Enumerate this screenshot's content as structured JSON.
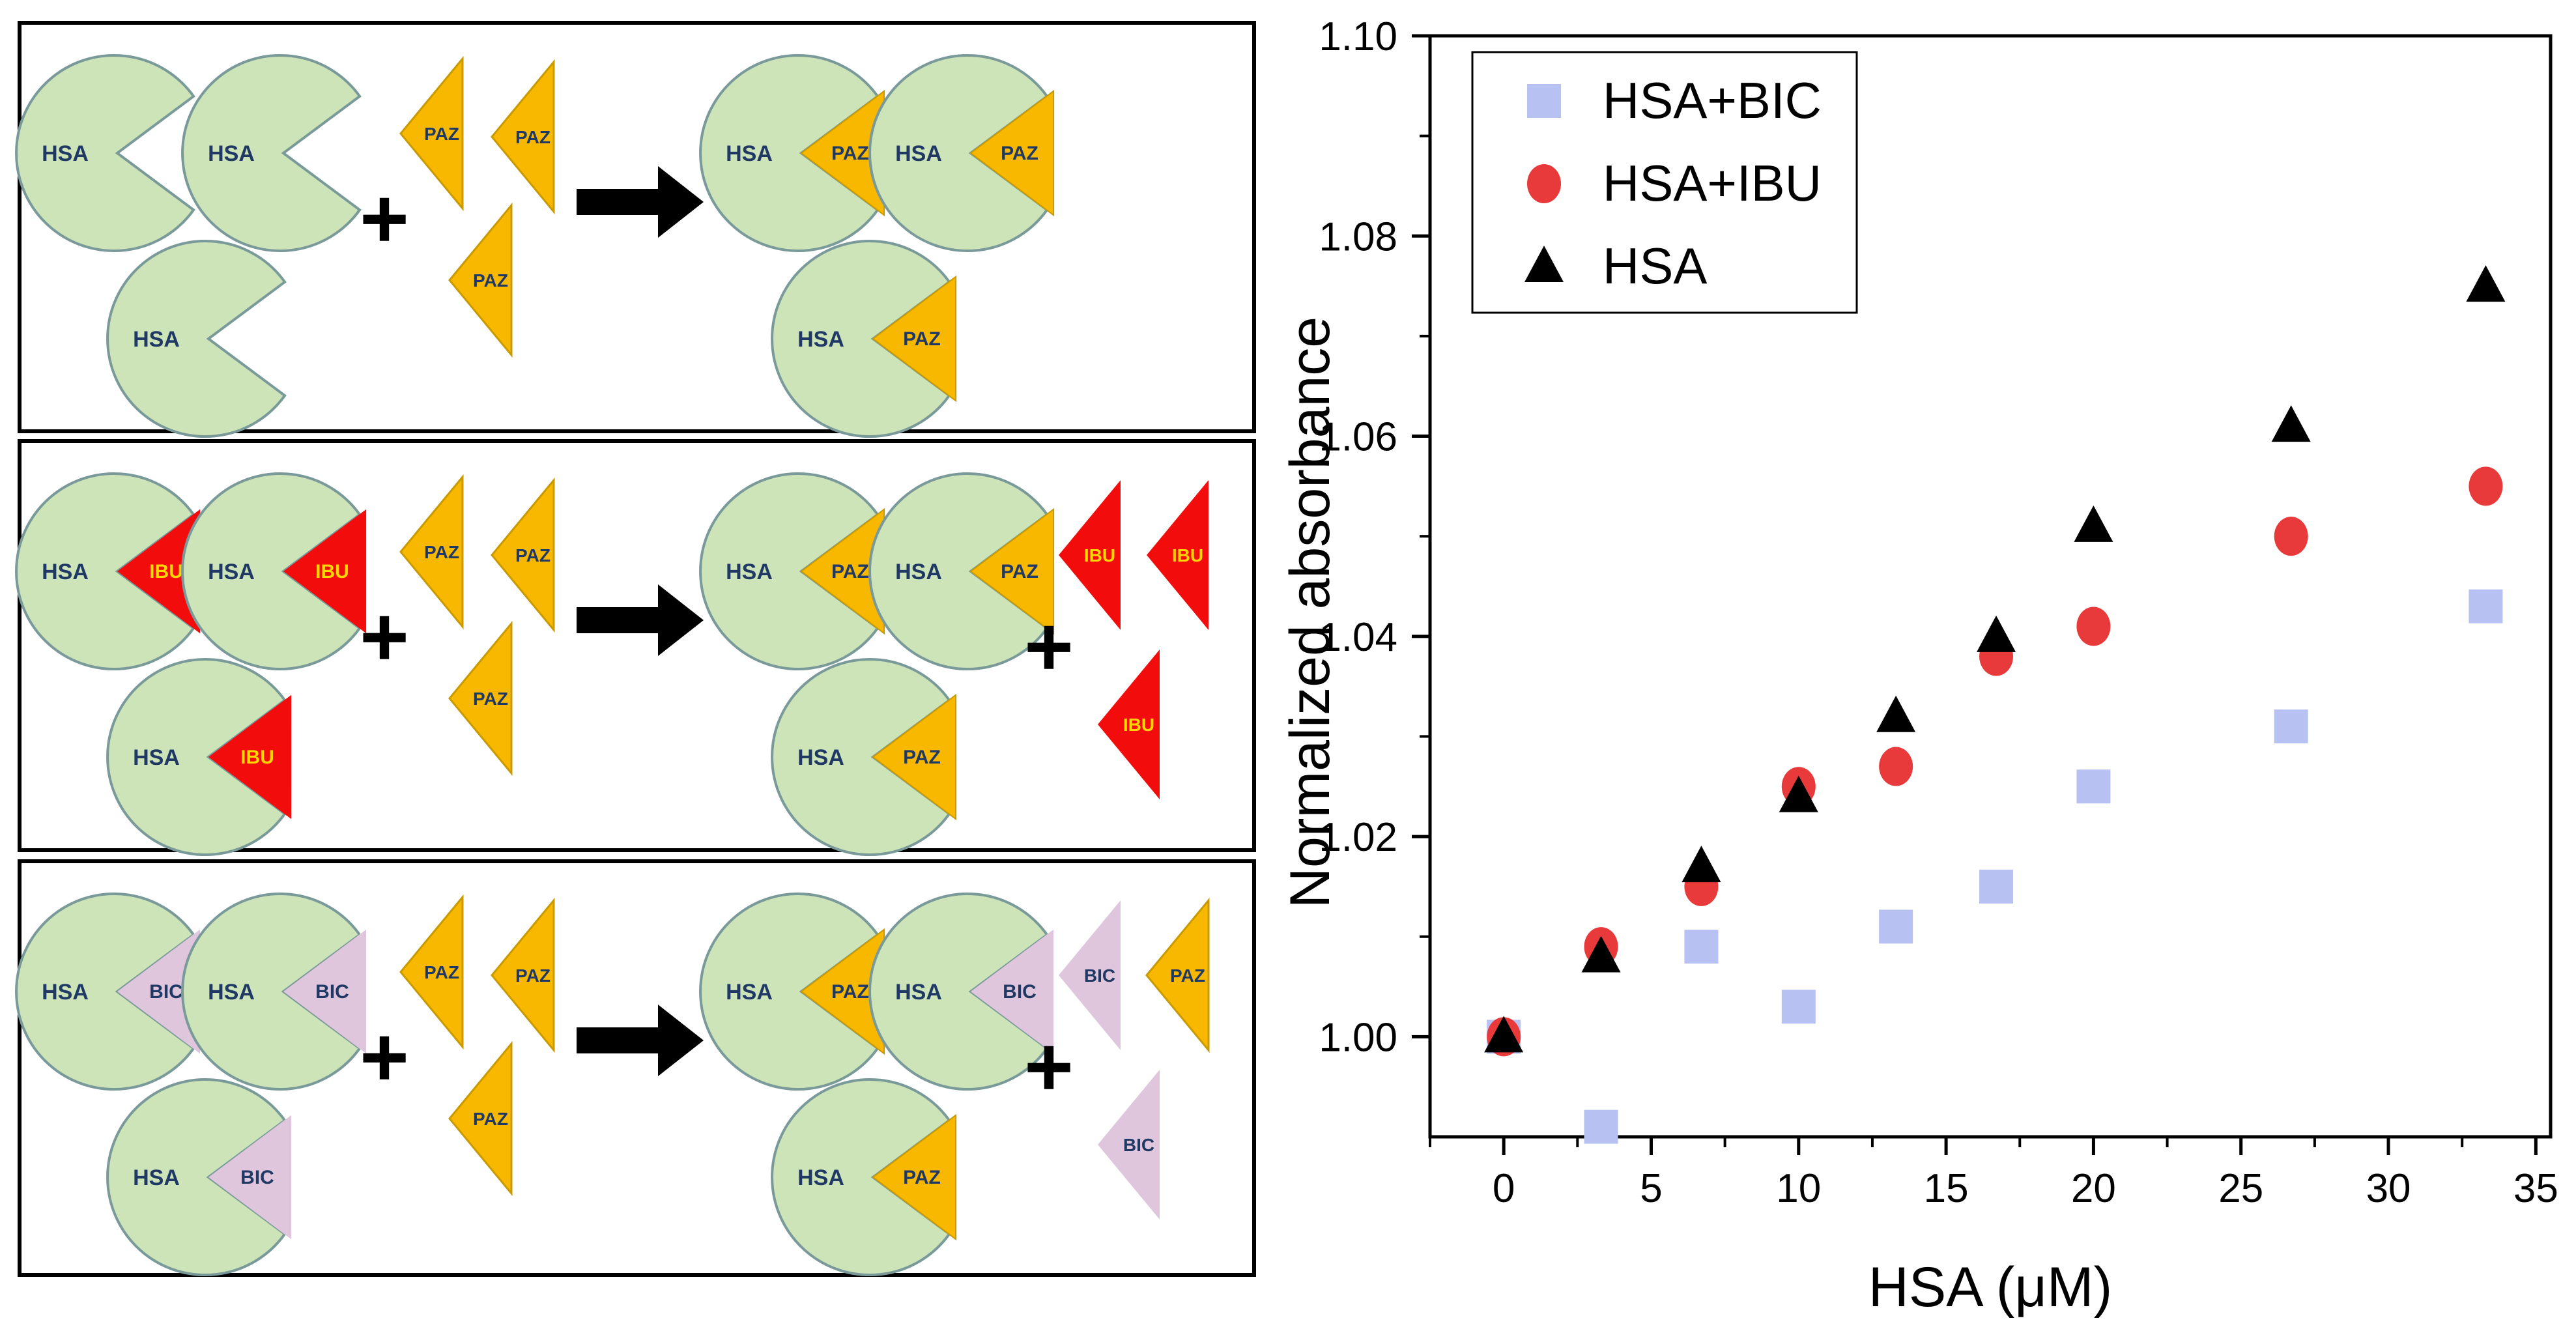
{
  "scheme": {
    "panels": [
      {
        "left": [
          {
            "protein": "HSA",
            "ligand": ""
          },
          {
            "protein": "HSA",
            "ligand": ""
          },
          {
            "protein": "HSA",
            "ligand": ""
          }
        ],
        "plus_left": "+",
        "added": [
          "PAZ",
          "PAZ",
          "PAZ"
        ],
        "right": [
          {
            "protein": "HSA",
            "ligand": "PAZ"
          },
          {
            "protein": "HSA",
            "ligand": "PAZ"
          },
          {
            "protein": "HSA",
            "ligand": "PAZ"
          }
        ],
        "plus_right": "",
        "released": []
      },
      {
        "left": [
          {
            "protein": "HSA",
            "ligand": "IBU"
          },
          {
            "protein": "HSA",
            "ligand": "IBU"
          },
          {
            "protein": "HSA",
            "ligand": "IBU"
          }
        ],
        "plus_left": "+",
        "added": [
          "PAZ",
          "PAZ",
          "PAZ"
        ],
        "right": [
          {
            "protein": "HSA",
            "ligand": "PAZ"
          },
          {
            "protein": "HSA",
            "ligand": "PAZ"
          },
          {
            "protein": "HSA",
            "ligand": "PAZ"
          }
        ],
        "plus_right": "+",
        "released": [
          "IBU",
          "IBU",
          "IBU"
        ]
      },
      {
        "left": [
          {
            "protein": "HSA",
            "ligand": "BIC"
          },
          {
            "protein": "HSA",
            "ligand": "BIC"
          },
          {
            "protein": "HSA",
            "ligand": "BIC"
          }
        ],
        "plus_left": "+",
        "added": [
          "PAZ",
          "PAZ",
          "PAZ"
        ],
        "right": [
          {
            "protein": "HSA",
            "ligand": "PAZ"
          },
          {
            "protein": "HSA",
            "ligand": "BIC"
          },
          {
            "protein": "HSA",
            "ligand": "PAZ"
          }
        ],
        "plus_right": "+",
        "released": [
          "BIC",
          "PAZ",
          "BIC"
        ]
      }
    ],
    "colors": {
      "protein": "#cde3b8",
      "protein_stroke": "#7a9a9a",
      "PAZ": "#f8b800",
      "IBU": "#f20c0c",
      "BIC": "#e0c6dc",
      "label_dark": "#1f3864",
      "label_ibu": "#ffd700",
      "frame": "#000000"
    }
  },
  "chart_data": {
    "type": "scatter",
    "xlabel": "HSA (μM)",
    "ylabel": "Normalized absorbance",
    "xlim": [
      -2.5,
      35.5
    ],
    "ylim": [
      0.99,
      1.1
    ],
    "xticks": [
      0,
      5,
      10,
      15,
      20,
      25,
      30,
      35
    ],
    "yticks": [
      1.0,
      1.02,
      1.04,
      1.06,
      1.08,
      1.1
    ],
    "ytick_labels": [
      "1.00",
      "1.02",
      "1.04",
      "1.06",
      "1.08",
      "1.10"
    ],
    "grid": false,
    "legend_position": "top-left",
    "series": [
      {
        "name": "HSA+BIC",
        "marker": "square",
        "color": "#b8c2f2",
        "x": [
          0,
          3.3,
          6.7,
          10,
          13.3,
          16.7,
          20,
          26.7,
          33.3
        ],
        "y": [
          1.0,
          0.991,
          1.009,
          1.003,
          1.011,
          1.015,
          1.025,
          1.031,
          1.043
        ]
      },
      {
        "name": "HSA+IBU",
        "marker": "circle",
        "color": "#e83a3a",
        "x": [
          0,
          3.3,
          6.7,
          10,
          13.3,
          16.7,
          20,
          26.7,
          33.3
        ],
        "y": [
          1.0,
          1.009,
          1.015,
          1.025,
          1.027,
          1.038,
          1.041,
          1.05,
          1.055
        ]
      },
      {
        "name": "HSA",
        "marker": "triangle",
        "color": "#000000",
        "x": [
          0,
          3.3,
          6.7,
          10,
          13.3,
          16.7,
          20,
          26.7,
          33.3
        ],
        "y": [
          1.0,
          1.008,
          1.017,
          1.024,
          1.032,
          1.04,
          1.051,
          1.061,
          1.075
        ]
      }
    ]
  }
}
